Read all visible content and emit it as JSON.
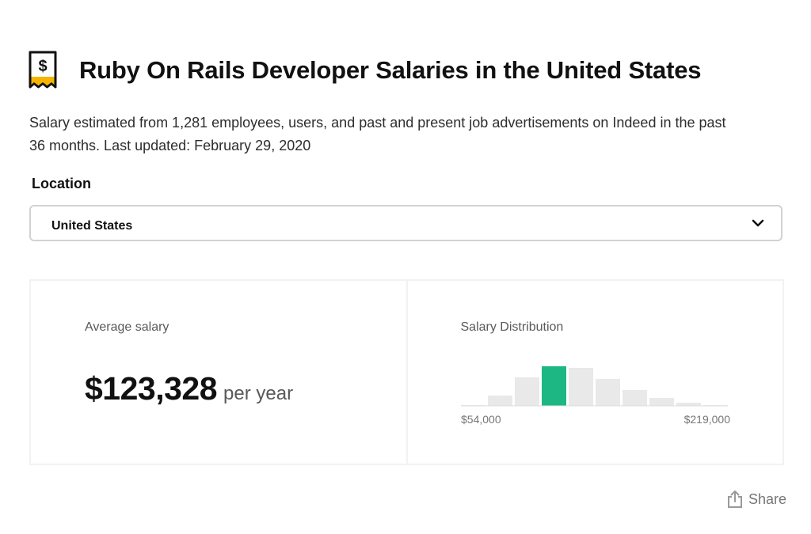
{
  "page": {
    "title": "Ruby On Rails Developer Salaries in the United States",
    "description": "Salary estimated from 1,281 employees, users, and past and present job advertisements on Indeed in the past 36 months. Last updated: February 29, 2020"
  },
  "location": {
    "label": "Location",
    "selected": "United States"
  },
  "average_salary": {
    "label": "Average salary",
    "value": "$123,328",
    "period": "per year"
  },
  "distribution": {
    "label": "Salary Distribution"
  },
  "chart_data": {
    "type": "bar",
    "title": "Salary Distribution",
    "xlabel": "",
    "ylabel": "",
    "x_range_labels": [
      "$54,000",
      "$219,000"
    ],
    "x_range": [
      54000,
      219000
    ],
    "values": [
      1,
      13,
      36,
      50,
      48,
      34,
      20,
      10,
      4,
      1
    ],
    "highlight_index": 3,
    "colors": {
      "bar": "#e9e9e9",
      "highlight": "#1db783",
      "baseline": "#dddddd"
    },
    "grid": false
  },
  "share": {
    "label": "Share",
    "icon": "share-icon"
  },
  "icons": {
    "title_icon": "salary-receipt-icon",
    "select_icon": "chevron-down-icon"
  }
}
